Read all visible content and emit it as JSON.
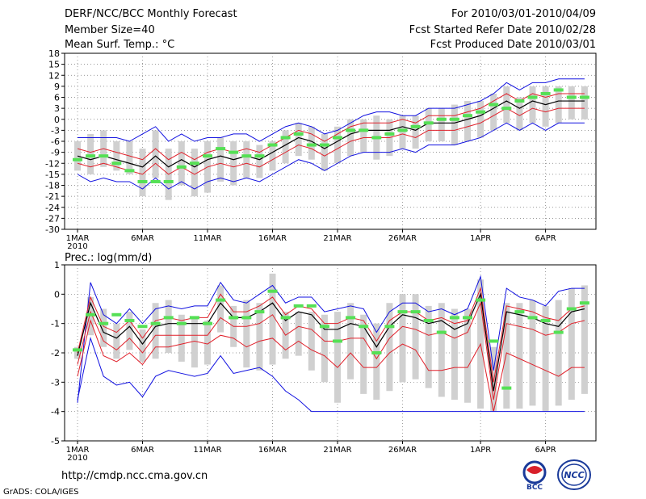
{
  "header": {
    "title": "DERF/NCC/BCC Monthly Forecast",
    "member": "Member Size=40",
    "variable": "Mean Surf. Temp.: °C",
    "period": "For 2010/03/01-2010/04/09",
    "started": "Fcst Started Refer Date 2010/02/28",
    "produced": "Fcst Produced Date 2010/03/01"
  },
  "footer": {
    "url": "http://cmdp.ncc.cma.gov.cn",
    "grads": "GrADS: COLA/IGES",
    "logo_bcc": "BCC",
    "logo_ncc": "NCC"
  },
  "colors": {
    "box": "#d0d0d0",
    "obs": "#55e055",
    "mean": "#000000",
    "band": "#e0202a",
    "envelope": "#1010e0",
    "grid": "#777777"
  },
  "chart_data": [
    {
      "type": "line",
      "title": "Mean Surf. Temp.: °C",
      "ylim": [
        -30,
        18
      ],
      "yticks": [
        -30,
        -27,
        -24,
        -21,
        -18,
        -15,
        -12,
        -9,
        -6,
        -3,
        0,
        3,
        6,
        9,
        12,
        15,
        18
      ],
      "xticks": [
        {
          "day": 1,
          "label": "1MAR"
        },
        {
          "day": 6,
          "label": "6MAR"
        },
        {
          "day": 11,
          "label": "11MAR"
        },
        {
          "day": 16,
          "label": "16MAR"
        },
        {
          "day": 21,
          "label": "21MAR"
        },
        {
          "day": 26,
          "label": "26MAR"
        },
        {
          "day": 32,
          "label": "1APR"
        },
        {
          "day": 37,
          "label": "6APR"
        }
      ],
      "year_label": "2010",
      "days": [
        1,
        2,
        3,
        4,
        5,
        6,
        7,
        8,
        9,
        10,
        11,
        12,
        13,
        14,
        15,
        16,
        17,
        18,
        19,
        20,
        21,
        22,
        23,
        24,
        25,
        26,
        27,
        28,
        29,
        30,
        31,
        32,
        33,
        34,
        35,
        36,
        37,
        38,
        39,
        40
      ],
      "series": [
        {
          "name": "max",
          "values": [
            -5,
            -5,
            -5,
            -5,
            -6,
            -4,
            -2,
            -6,
            -4,
            -6,
            -5,
            -5,
            -4,
            -4,
            -6,
            -4,
            -2,
            -1,
            -2,
            -4,
            -3,
            -1,
            1,
            2,
            2,
            1,
            1,
            3,
            3,
            3,
            4,
            5,
            7,
            10,
            8,
            10,
            10,
            11,
            11,
            11
          ]
        },
        {
          "name": "upper",
          "values": [
            -8,
            -9,
            -8,
            -9,
            -10,
            -11,
            -8,
            -11,
            -9,
            -11,
            -9,
            -8,
            -9,
            -8,
            -9,
            -7,
            -5,
            -3,
            -4,
            -6,
            -4,
            -2,
            -1,
            -1,
            -1,
            0,
            -1,
            1,
            1,
            1,
            2,
            3,
            5,
            7,
            5,
            7,
            6,
            7,
            7,
            7
          ]
        },
        {
          "name": "mean",
          "values": [
            -10,
            -11,
            -10,
            -11,
            -12,
            -13,
            -10,
            -13,
            -11,
            -13,
            -11,
            -10,
            -11,
            -10,
            -11,
            -9,
            -7,
            -5,
            -6,
            -8,
            -6,
            -4,
            -3,
            -3,
            -3,
            -2,
            -3,
            -1,
            -1,
            -1,
            0,
            1,
            3,
            5,
            3,
            5,
            4,
            5,
            5,
            5
          ]
        },
        {
          "name": "lower",
          "values": [
            -12,
            -13,
            -12,
            -13,
            -14,
            -15,
            -12,
            -15,
            -13,
            -15,
            -13,
            -12,
            -13,
            -12,
            -13,
            -11,
            -9,
            -7,
            -8,
            -10,
            -8,
            -6,
            -5,
            -5,
            -5,
            -4,
            -5,
            -3,
            -3,
            -3,
            -2,
            -1,
            1,
            3,
            1,
            3,
            2,
            3,
            3,
            3
          ]
        },
        {
          "name": "min",
          "values": [
            -15,
            -17,
            -16,
            -17,
            -17,
            -19,
            -16,
            -19,
            -17,
            -19,
            -17,
            -16,
            -17,
            -16,
            -17,
            -15,
            -13,
            -11,
            -12,
            -14,
            -12,
            -10,
            -9,
            -9,
            -9,
            -8,
            -9,
            -7,
            -7,
            -7,
            -6,
            -5,
            -3,
            -1,
            -3,
            -1,
            -3,
            -1,
            -1,
            -1
          ]
        }
      ],
      "box_low": [
        -14,
        -15,
        -13,
        -14,
        -15,
        -21,
        -16,
        -22,
        -18,
        -21,
        -20,
        -17,
        -18,
        -16,
        -16,
        -14,
        -12,
        -10,
        -11,
        -14,
        -12,
        -10,
        -9,
        -11,
        -10,
        -8,
        -8,
        -6,
        -6,
        -7,
        -6,
        -5,
        -3,
        -1,
        -3,
        -1,
        -2,
        -1,
        0,
        0
      ],
      "box_high": [
        -6,
        -4,
        -3,
        -6,
        -6,
        -8,
        -3,
        -8,
        -6,
        -8,
        -6,
        -5,
        -6,
        -6,
        -7,
        -6,
        -3,
        -1,
        -2,
        -4,
        -2,
        0,
        0,
        1,
        0,
        1,
        1,
        3,
        3,
        4,
        5,
        5,
        7,
        9,
        6,
        9,
        9,
        9,
        9,
        9
      ],
      "observed": [
        -11,
        -10,
        -10,
        -12,
        -14,
        -17,
        -17,
        -17,
        -13,
        -12,
        -10,
        -8,
        -9,
        -10,
        -10,
        -7,
        -5,
        -4,
        -7,
        -7,
        -5,
        -3,
        -3,
        -5,
        -4,
        -3,
        -2,
        -1,
        0,
        0,
        1,
        2,
        4,
        3,
        5,
        6,
        7,
        8,
        6,
        6
      ]
    },
    {
      "type": "line",
      "title": "Prec.: log(mm/d)",
      "ylim": [
        -5,
        1
      ],
      "yticks": [
        -5,
        -4,
        -3,
        -2,
        -1,
        0,
        1
      ],
      "xticks": [
        {
          "day": 1,
          "label": "1MAR"
        },
        {
          "day": 6,
          "label": "6MAR"
        },
        {
          "day": 11,
          "label": "11MAR"
        },
        {
          "day": 16,
          "label": "16MAR"
        },
        {
          "day": 21,
          "label": "21MAR"
        },
        {
          "day": 26,
          "label": "26MAR"
        },
        {
          "day": 32,
          "label": "1APR"
        },
        {
          "day": 37,
          "label": "6APR"
        }
      ],
      "year_label": "2010",
      "days": [
        1,
        2,
        3,
        4,
        5,
        6,
        7,
        8,
        9,
        10,
        11,
        12,
        13,
        14,
        15,
        16,
        17,
        18,
        19,
        20,
        21,
        22,
        23,
        24,
        25,
        26,
        27,
        28,
        29,
        30,
        31,
        32,
        33,
        34,
        35,
        36,
        37,
        38,
        39,
        40
      ],
      "series": [
        {
          "name": "max",
          "values": [
            -3.7,
            0.4,
            -0.7,
            -1.0,
            -0.5,
            -1.0,
            -0.5,
            -0.4,
            -0.5,
            -0.4,
            -0.4,
            0.4,
            -0.2,
            -0.3,
            0.0,
            0.3,
            -0.3,
            -0.1,
            -0.1,
            -0.6,
            -0.5,
            -0.4,
            -0.5,
            -1.3,
            -0.6,
            -0.3,
            -0.3,
            -0.6,
            -0.5,
            -0.7,
            -0.5,
            0.6,
            -2.6,
            0.2,
            -0.1,
            -0.2,
            -0.4,
            0.1,
            0.2,
            0.2
          ]
        },
        {
          "name": "upper",
          "values": [
            -2.0,
            -0.1,
            -1.1,
            -1.3,
            -0.9,
            -1.5,
            -0.9,
            -0.8,
            -0.9,
            -0.8,
            -0.8,
            0.0,
            -0.6,
            -0.6,
            -0.4,
            -0.1,
            -0.7,
            -0.4,
            -0.5,
            -1.0,
            -1.0,
            -0.8,
            -0.9,
            -1.6,
            -0.9,
            -0.6,
            -0.6,
            -0.9,
            -0.8,
            -1.0,
            -0.9,
            0.2,
            -3.0,
            -0.4,
            -0.5,
            -0.6,
            -0.8,
            -0.9,
            -0.5,
            -0.4
          ]
        },
        {
          "name": "mean",
          "values": [
            -2.1,
            -0.3,
            -1.3,
            -1.5,
            -1.1,
            -1.7,
            -1.1,
            -1.0,
            -1.0,
            -1.0,
            -1.0,
            -0.3,
            -0.8,
            -0.8,
            -0.6,
            -0.3,
            -0.9,
            -0.6,
            -0.7,
            -1.2,
            -1.2,
            -1.0,
            -1.1,
            -1.8,
            -1.1,
            -0.7,
            -0.8,
            -1.0,
            -0.9,
            -1.2,
            -1.0,
            0.0,
            -3.3,
            -0.6,
            -0.7,
            -0.8,
            -1.0,
            -1.1,
            -0.6,
            -0.5
          ]
        },
        {
          "name": "lower",
          "values": [
            -2.4,
            -0.6,
            -1.6,
            -1.9,
            -1.5,
            -2.0,
            -1.4,
            -1.4,
            -1.4,
            -1.4,
            -1.4,
            -0.8,
            -1.1,
            -1.1,
            -1.0,
            -0.7,
            -1.4,
            -1.1,
            -1.2,
            -1.6,
            -1.6,
            -1.5,
            -1.5,
            -2.2,
            -1.5,
            -1.1,
            -1.2,
            -1.4,
            -1.3,
            -1.5,
            -1.3,
            -0.3,
            -3.6,
            -1.0,
            -1.1,
            -1.2,
            -1.4,
            -1.3,
            -1.0,
            -0.9
          ]
        },
        {
          "name": "lowest",
          "values": [
            -2.8,
            -0.9,
            -2.1,
            -2.3,
            -2.0,
            -2.4,
            -1.8,
            -1.8,
            -1.7,
            -1.6,
            -1.7,
            -1.4,
            -1.5,
            -1.8,
            -1.6,
            -1.5,
            -1.9,
            -1.6,
            -1.9,
            -2.1,
            -2.5,
            -2.0,
            -2.5,
            -2.5,
            -2.0,
            -1.7,
            -1.9,
            -2.6,
            -2.6,
            -2.5,
            -2.5,
            -1.7,
            -4.0,
            -2.0,
            -2.2,
            -2.4,
            -2.6,
            -2.8,
            -2.5,
            -2.5
          ]
        },
        {
          "name": "min",
          "values": [
            -3.6,
            -1.5,
            -2.8,
            -3.1,
            -3.0,
            -3.5,
            -2.8,
            -2.6,
            -2.7,
            -2.8,
            -2.7,
            -2.1,
            -2.7,
            -2.6,
            -2.5,
            -2.8,
            -3.3,
            -3.6,
            -4.0,
            -4.0,
            -4.0,
            -4.0,
            -4.0,
            -4.0,
            -4.0,
            -4.0,
            -4.0,
            -4.0,
            -4.0,
            -4.0,
            -4.0,
            -4.0,
            -4.0,
            -4.0,
            -4.0,
            -4.0,
            -4.0,
            -4.0,
            -4.0,
            -4.0
          ]
        }
      ],
      "box_low": [
        -2.2,
        -1.4,
        -1.8,
        -2.2,
        -1.9,
        -2.3,
        -2.2,
        -2.0,
        -2.3,
        -2.5,
        -2.4,
        -1.3,
        -1.8,
        -2.5,
        -2.6,
        -2.4,
        -2.2,
        -2.1,
        -2.6,
        -3.0,
        -3.7,
        -2.9,
        -3.4,
        -3.6,
        -3.3,
        -3.0,
        -2.9,
        -3.2,
        -3.5,
        -3.6,
        -3.7,
        -3.9,
        -4.0,
        -3.9,
        -3.9,
        -3.8,
        -4.0,
        -3.8,
        -3.6,
        -3.4
      ],
      "box_high": [
        -1.8,
        -0.1,
        -0.5,
        -1.0,
        -0.6,
        -1.2,
        -0.3,
        -0.2,
        -0.7,
        -0.8,
        -0.9,
        0.3,
        -0.4,
        -0.2,
        -0.3,
        0.7,
        -0.6,
        -0.6,
        -0.6,
        -0.7,
        -0.6,
        -0.3,
        -0.7,
        -1.0,
        -0.3,
        0.0,
        0.0,
        -0.4,
        -0.3,
        -0.5,
        -0.5,
        0.5,
        -1.8,
        -0.3,
        -0.3,
        -0.2,
        -0.4,
        -0.2,
        0.2,
        0.3
      ],
      "observed": [
        -1.9,
        -0.7,
        -1.0,
        -0.7,
        -0.9,
        -1.1,
        -1.0,
        -0.8,
        -1.0,
        -0.8,
        -1.0,
        -0.2,
        -0.8,
        -0.8,
        -0.6,
        0.1,
        -0.8,
        -0.4,
        -0.4,
        -1.1,
        -1.6,
        -0.8,
        -1.1,
        -2.0,
        -1.1,
        -0.6,
        -0.6,
        -0.9,
        -1.3,
        -0.8,
        -0.8,
        -0.2,
        -1.6,
        -3.2,
        -0.6,
        -0.8,
        -0.9,
        -1.3,
        -0.5,
        -0.3
      ]
    }
  ]
}
